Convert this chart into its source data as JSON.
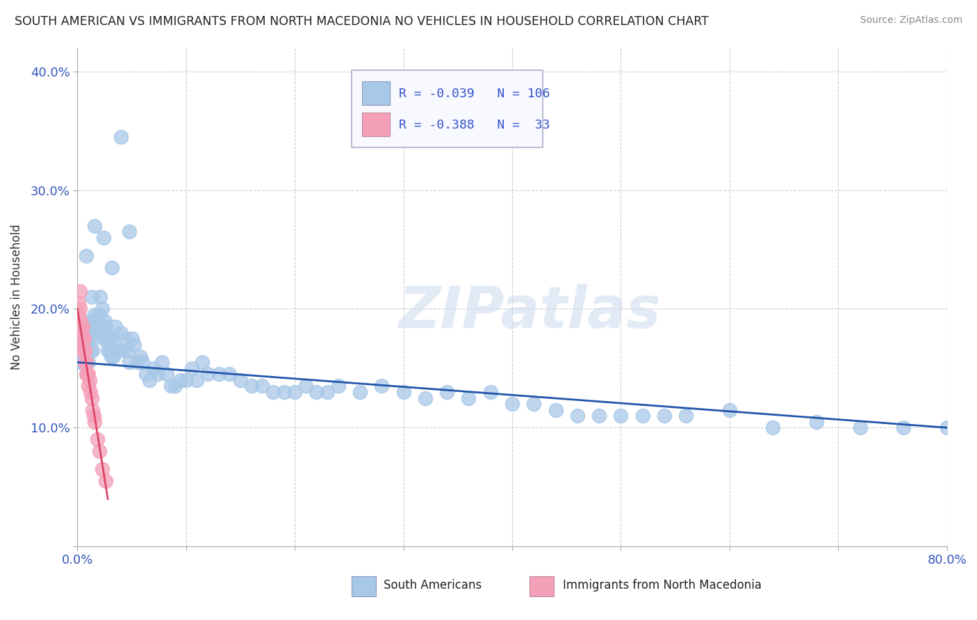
{
  "title": "SOUTH AMERICAN VS IMMIGRANTS FROM NORTH MACEDONIA NO VEHICLES IN HOUSEHOLD CORRELATION CHART",
  "source": "Source: ZipAtlas.com",
  "ylabel": "No Vehicles in Household",
  "xlim": [
    0.0,
    0.8
  ],
  "ylim": [
    0.0,
    0.42
  ],
  "xticks": [
    0.0,
    0.1,
    0.2,
    0.3,
    0.4,
    0.5,
    0.6,
    0.7,
    0.8
  ],
  "yticks": [
    0.0,
    0.1,
    0.2,
    0.3,
    0.4
  ],
  "xticklabels": [
    "0.0%",
    "",
    "",
    "",
    "",
    "",
    "",
    "",
    "80.0%"
  ],
  "yticklabels": [
    "",
    "10.0%",
    "20.0%",
    "30.0%",
    "40.0%"
  ],
  "blue_R": -0.039,
  "blue_N": 106,
  "pink_R": -0.388,
  "pink_N": 33,
  "blue_color": "#A8C8E8",
  "pink_color": "#F4A0B8",
  "blue_line_color": "#2255AA",
  "pink_line_color": "#DD4466",
  "background_color": "#FFFFFF",
  "grid_color": "#CCCCCC",
  "watermark_text": "ZIPatlas",
  "blue_scatter_x": [
    0.002,
    0.003,
    0.004,
    0.005,
    0.005,
    0.006,
    0.007,
    0.008,
    0.008,
    0.009,
    0.01,
    0.01,
    0.011,
    0.012,
    0.012,
    0.013,
    0.014,
    0.014,
    0.015,
    0.016,
    0.017,
    0.018,
    0.019,
    0.02,
    0.021,
    0.022,
    0.023,
    0.024,
    0.025,
    0.026,
    0.027,
    0.028,
    0.029,
    0.03,
    0.031,
    0.032,
    0.033,
    0.034,
    0.035,
    0.036,
    0.037,
    0.038,
    0.04,
    0.042,
    0.044,
    0.046,
    0.048,
    0.05,
    0.052,
    0.055,
    0.058,
    0.06,
    0.063,
    0.066,
    0.07,
    0.074,
    0.078,
    0.082,
    0.086,
    0.09,
    0.095,
    0.1,
    0.105,
    0.11,
    0.115,
    0.12,
    0.13,
    0.14,
    0.15,
    0.16,
    0.17,
    0.18,
    0.19,
    0.2,
    0.21,
    0.22,
    0.23,
    0.24,
    0.26,
    0.28,
    0.3,
    0.32,
    0.34,
    0.36,
    0.38,
    0.4,
    0.42,
    0.44,
    0.46,
    0.48,
    0.5,
    0.52,
    0.54,
    0.56,
    0.6,
    0.64,
    0.68,
    0.72,
    0.76,
    0.8,
    0.008,
    0.016,
    0.024,
    0.032,
    0.04,
    0.048
  ],
  "blue_scatter_y": [
    0.155,
    0.185,
    0.175,
    0.17,
    0.155,
    0.16,
    0.185,
    0.17,
    0.155,
    0.165,
    0.175,
    0.155,
    0.19,
    0.18,
    0.165,
    0.21,
    0.175,
    0.165,
    0.18,
    0.195,
    0.185,
    0.19,
    0.185,
    0.195,
    0.21,
    0.185,
    0.2,
    0.175,
    0.19,
    0.185,
    0.175,
    0.165,
    0.175,
    0.165,
    0.16,
    0.175,
    0.16,
    0.165,
    0.185,
    0.165,
    0.165,
    0.165,
    0.18,
    0.165,
    0.175,
    0.165,
    0.155,
    0.175,
    0.17,
    0.155,
    0.16,
    0.155,
    0.145,
    0.14,
    0.15,
    0.145,
    0.155,
    0.145,
    0.135,
    0.135,
    0.14,
    0.14,
    0.15,
    0.14,
    0.155,
    0.145,
    0.145,
    0.145,
    0.14,
    0.135,
    0.135,
    0.13,
    0.13,
    0.13,
    0.135,
    0.13,
    0.13,
    0.135,
    0.13,
    0.135,
    0.13,
    0.125,
    0.13,
    0.125,
    0.13,
    0.12,
    0.12,
    0.115,
    0.11,
    0.11,
    0.11,
    0.11,
    0.11,
    0.11,
    0.115,
    0.1,
    0.105,
    0.1,
    0.1,
    0.1,
    0.245,
    0.27,
    0.26,
    0.235,
    0.345,
    0.265
  ],
  "pink_scatter_x": [
    0.001,
    0.001,
    0.001,
    0.002,
    0.002,
    0.002,
    0.003,
    0.003,
    0.003,
    0.004,
    0.004,
    0.005,
    0.005,
    0.005,
    0.006,
    0.006,
    0.007,
    0.007,
    0.008,
    0.008,
    0.009,
    0.01,
    0.01,
    0.011,
    0.012,
    0.013,
    0.014,
    0.015,
    0.016,
    0.018,
    0.02,
    0.023,
    0.026
  ],
  "pink_scatter_y": [
    0.205,
    0.195,
    0.18,
    0.215,
    0.2,
    0.185,
    0.19,
    0.185,
    0.175,
    0.18,
    0.175,
    0.185,
    0.175,
    0.165,
    0.175,
    0.165,
    0.165,
    0.155,
    0.155,
    0.145,
    0.145,
    0.145,
    0.135,
    0.14,
    0.13,
    0.125,
    0.115,
    0.11,
    0.105,
    0.09,
    0.08,
    0.065,
    0.055
  ],
  "blue_trend_x0": 0.0,
  "blue_trend_y0": 0.155,
  "blue_trend_x1": 0.8,
  "blue_trend_y1": 0.1,
  "pink_trend_x0": 0.0,
  "pink_trend_y0": 0.2,
  "pink_trend_x1": 0.028,
  "pink_trend_y1": 0.04
}
